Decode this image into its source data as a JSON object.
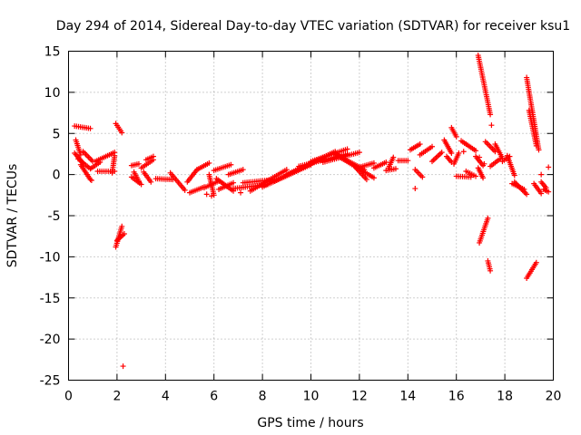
{
  "chart_data": {
    "type": "scatter",
    "title": "Day 294 of 2014, Sidereal Day-to-day VTEC variation (SDTVAR) for receiver ksu1",
    "xlabel": "GPS time / hours",
    "ylabel": "SDTVAR / TECUs",
    "xlim": [
      0,
      20
    ],
    "ylim": [
      -25,
      15
    ],
    "xticks": [
      0,
      2,
      4,
      6,
      8,
      10,
      12,
      14,
      16,
      18,
      20
    ],
    "yticks": [
      -25,
      -20,
      -15,
      -10,
      -5,
      0,
      5,
      10,
      15
    ],
    "grid": true,
    "marker": "+",
    "color": "#ff0000",
    "series": [
      {
        "name": "SDTVAR",
        "segments": [
          [
            [
              0.25,
              5.9
            ],
            [
              0.9,
              5.6
            ]
          ],
          [
            [
              0.25,
              2.6
            ],
            [
              0.6,
              1.4
            ]
          ],
          [
            [
              0.3,
              4.2
            ],
            [
              0.5,
              2.4
            ]
          ],
          [
            [
              0.4,
              1.9
            ],
            [
              0.9,
              0.7
            ]
          ],
          [
            [
              0.5,
              1.2
            ],
            [
              0.9,
              -0.6
            ]
          ],
          [
            [
              0.6,
              2.8
            ],
            [
              1.0,
              1.6
            ]
          ],
          [
            [
              0.95,
              0.8
            ],
            [
              1.3,
              1.5
            ]
          ],
          [
            [
              1.1,
              1.6
            ],
            [
              1.9,
              2.7
            ]
          ],
          [
            [
              1.2,
              0.4
            ],
            [
              1.9,
              0.4
            ]
          ],
          [
            [
              1.8,
              0.2
            ],
            [
              1.9,
              2.3
            ]
          ],
          [
            [
              1.95,
              6.2
            ],
            [
              2.2,
              5.1
            ]
          ],
          [
            [
              1.95,
              -8.8
            ],
            [
              2.2,
              -6.3
            ]
          ],
          [
            [
              2.0,
              -8.0
            ],
            [
              2.3,
              -7.2
            ]
          ],
          [
            [
              2.6,
              1.1
            ],
            [
              2.9,
              1.3
            ]
          ],
          [
            [
              2.6,
              -0.3
            ],
            [
              3.0,
              -1.2
            ]
          ],
          [
            [
              2.7,
              0.3
            ],
            [
              2.9,
              -0.8
            ]
          ],
          [
            [
              3.1,
              0.3
            ],
            [
              3.4,
              -0.9
            ]
          ],
          [
            [
              3.2,
              1.8
            ],
            [
              3.5,
              2.2
            ]
          ],
          [
            [
              3.0,
              0.8
            ],
            [
              3.5,
              1.8
            ]
          ],
          [
            [
              3.6,
              -0.5
            ],
            [
              4.3,
              -0.6
            ]
          ],
          [
            [
              4.2,
              0.2
            ],
            [
              4.8,
              -1.9
            ]
          ],
          [
            [
              4.9,
              -0.9
            ],
            [
              5.3,
              0.6
            ]
          ],
          [
            [
              5.0,
              -2.2
            ],
            [
              5.6,
              -1.5
            ]
          ],
          [
            [
              5.3,
              0.6
            ],
            [
              5.8,
              1.4
            ]
          ],
          [
            [
              5.6,
              -1.6
            ],
            [
              6.2,
              -0.8
            ]
          ],
          [
            [
              5.8,
              0.0
            ],
            [
              6.0,
              -2.5
            ]
          ],
          [
            [
              6.0,
              0.5
            ],
            [
              6.7,
              1.2
            ]
          ],
          [
            [
              6.2,
              -1.8
            ],
            [
              6.8,
              -1.0
            ]
          ],
          [
            [
              6.6,
              0.0
            ],
            [
              7.2,
              0.6
            ]
          ],
          [
            [
              6.1,
              -0.5
            ],
            [
              6.8,
              -2.0
            ]
          ],
          [
            [
              6.8,
              -1.7
            ],
            [
              8.2,
              -1.2
            ]
          ],
          [
            [
              7.2,
              -1.0
            ],
            [
              8.5,
              -0.6
            ]
          ],
          [
            [
              7.5,
              -2.0
            ],
            [
              9.0,
              0.6
            ]
          ],
          [
            [
              8.0,
              -1.5
            ],
            [
              10.0,
              1.2
            ]
          ],
          [
            [
              8.5,
              -0.8
            ],
            [
              10.5,
              2.0
            ]
          ],
          [
            [
              9.0,
              0.0
            ],
            [
              11.0,
              2.8
            ]
          ],
          [
            [
              9.5,
              1.0
            ],
            [
              11.5,
              2.5
            ]
          ],
          [
            [
              10.0,
              1.6
            ],
            [
              11.5,
              3.1
            ]
          ],
          [
            [
              10.5,
              1.5
            ],
            [
              12.0,
              2.7
            ]
          ],
          [
            [
              11.0,
              2.5
            ],
            [
              12.2,
              0.6
            ]
          ],
          [
            [
              11.2,
              2.1
            ],
            [
              12.6,
              -0.4
            ]
          ],
          [
            [
              11.8,
              1.0
            ],
            [
              12.3,
              -0.6
            ]
          ],
          [
            [
              12.0,
              0.9
            ],
            [
              12.6,
              1.4
            ]
          ],
          [
            [
              12.6,
              0.8
            ],
            [
              13.1,
              1.5
            ]
          ],
          [
            [
              13.1,
              0.5
            ],
            [
              13.5,
              0.7
            ]
          ],
          [
            [
              13.2,
              0.8
            ],
            [
              13.4,
              2.1
            ]
          ],
          [
            [
              13.6,
              1.7
            ],
            [
              14.0,
              1.7
            ]
          ],
          [
            [
              14.1,
              3.0
            ],
            [
              14.5,
              3.7
            ]
          ],
          [
            [
              14.3,
              0.6
            ],
            [
              14.6,
              -0.3
            ]
          ],
          [
            [
              14.5,
              2.4
            ],
            [
              15.0,
              3.4
            ]
          ],
          [
            [
              15.0,
              1.6
            ],
            [
              15.4,
              2.7
            ]
          ],
          [
            [
              15.5,
              4.2
            ],
            [
              15.8,
              2.6
            ]
          ],
          [
            [
              15.6,
              2.2
            ],
            [
              15.8,
              1.5
            ]
          ],
          [
            [
              15.8,
              5.7
            ],
            [
              16.0,
              4.6
            ]
          ],
          [
            [
              15.9,
              1.3
            ],
            [
              16.1,
              2.6
            ]
          ],
          [
            [
              16.0,
              -0.2
            ],
            [
              16.6,
              -0.3
            ]
          ],
          [
            [
              16.2,
              4.1
            ],
            [
              16.8,
              2.9
            ]
          ],
          [
            [
              16.4,
              0.4
            ],
            [
              16.8,
              -0.2
            ]
          ],
          [
            [
              16.8,
              2.2
            ],
            [
              17.1,
              1.1
            ]
          ],
          [
            [
              16.9,
              14.5
            ],
            [
              17.4,
              7.3
            ]
          ],
          [
            [
              16.9,
              0.8
            ],
            [
              17.1,
              -0.4
            ]
          ],
          [
            [
              16.95,
              -8.3
            ],
            [
              17.3,
              -5.3
            ]
          ],
          [
            [
              17.2,
              4.0
            ],
            [
              17.6,
              2.8
            ]
          ],
          [
            [
              17.3,
              -10.5
            ],
            [
              17.4,
              -11.7
            ]
          ],
          [
            [
              17.4,
              1.0
            ],
            [
              17.8,
              1.9
            ]
          ],
          [
            [
              17.6,
              3.7
            ],
            [
              17.9,
              2.0
            ]
          ],
          [
            [
              17.9,
              1.6
            ],
            [
              18.2,
              2.2
            ]
          ],
          [
            [
              18.1,
              2.3
            ],
            [
              18.4,
              -0.1
            ]
          ],
          [
            [
              18.3,
              -1.1
            ],
            [
              18.8,
              -1.8
            ]
          ],
          [
            [
              18.4,
              -0.9
            ],
            [
              18.9,
              -2.4
            ]
          ],
          [
            [
              18.9,
              11.8
            ],
            [
              19.4,
              3.0
            ]
          ],
          [
            [
              18.9,
              -12.6
            ],
            [
              19.3,
              -10.7
            ]
          ],
          [
            [
              19.0,
              7.8
            ],
            [
              19.3,
              3.5
            ]
          ],
          [
            [
              19.2,
              -1.1
            ],
            [
              19.5,
              -2.3
            ]
          ],
          [
            [
              19.5,
              -0.9
            ],
            [
              19.7,
              -1.6
            ]
          ],
          [
            [
              19.6,
              -1.8
            ],
            [
              19.8,
              -2.1
            ]
          ]
        ],
        "points": [
          [
            0.95,
            -0.7
          ],
          [
            2.25,
            -23.3
          ],
          [
            5.9,
            -2.6
          ],
          [
            5.7,
            -2.4
          ],
          [
            14.3,
            -1.7
          ],
          [
            16.3,
            2.8
          ],
          [
            16.95,
            2.1
          ],
          [
            17.45,
            6.0
          ],
          [
            19.5,
            0.0
          ],
          [
            19.8,
            0.9
          ],
          [
            17.15,
            1.3
          ],
          [
            7.1,
            -2.2
          ]
        ]
      }
    ]
  }
}
